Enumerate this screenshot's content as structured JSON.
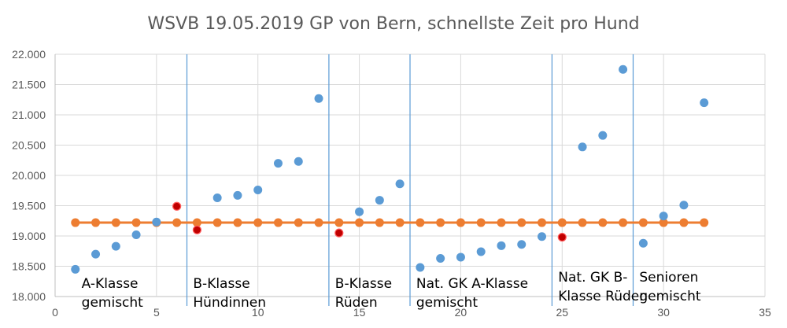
{
  "chart_data": {
    "type": "scatter",
    "title": "WSVB 19.05.2019 GP von Bern, schnellste Zeit pro Hund",
    "xlim": [
      0,
      35
    ],
    "ylim": [
      18000,
      22000
    ],
    "x_ticks": [
      0,
      5,
      10,
      15,
      20,
      25,
      30,
      35
    ],
    "y_ticks": [
      18000,
      18500,
      19000,
      19500,
      20000,
      20500,
      21000,
      21500,
      22000
    ],
    "x_tick_labels": [
      "0",
      "5",
      "10",
      "15",
      "20",
      "25",
      "30",
      "35"
    ],
    "y_tick_labels": [
      "18.000",
      "18.500",
      "19.000",
      "19.500",
      "20.000",
      "20.500",
      "21.000",
      "21.500",
      "22.000"
    ],
    "grid": "horizontal and vertical",
    "legend": "none",
    "series": [
      {
        "color": "#5b9bd5",
        "x": [
          1,
          2,
          3,
          4,
          5,
          6,
          7,
          8,
          9,
          10,
          11,
          12,
          13,
          14,
          15,
          16,
          17,
          18,
          19,
          20,
          21,
          22,
          23,
          24,
          25,
          26,
          27,
          28,
          29,
          30,
          31,
          32
        ],
        "y": [
          18450,
          18700,
          18830,
          19020,
          19230,
          19490,
          19100,
          19630,
          19670,
          19760,
          20200,
          20230,
          21270,
          19050,
          19400,
          19590,
          19860,
          18480,
          18630,
          18650,
          18740,
          18840,
          18860,
          18990,
          18980,
          20470,
          20660,
          21750,
          18880,
          19330,
          19510,
          21200
        ],
        "highlight_color": "#c00000",
        "highlight_x": [
          6,
          7,
          14,
          25
        ]
      },
      {
        "color": "#ed7d31",
        "x": [
          1,
          2,
          3,
          4,
          5,
          6,
          7,
          8,
          9,
          10,
          11,
          12,
          13,
          14,
          15,
          16,
          17,
          18,
          19,
          20,
          21,
          22,
          23,
          24,
          25,
          26,
          27,
          28,
          29,
          30,
          31,
          32
        ],
        "y": [
          19220,
          19220,
          19220,
          19220,
          19220,
          19220,
          19220,
          19220,
          19220,
          19220,
          19220,
          19220,
          19220,
          19220,
          19220,
          19220,
          19220,
          19220,
          19220,
          19220,
          19220,
          19220,
          19220,
          19220,
          19220,
          19220,
          19220,
          19220,
          19220,
          19220,
          19220,
          19220
        ]
      }
    ],
    "separators_x": [
      6.5,
      13.5,
      17.5,
      24.5,
      28.5
    ],
    "separator_color": "#5b9bd5",
    "group_labels": [
      {
        "lines": [
          "A-Klasse",
          "gemischt"
        ]
      },
      {
        "lines": [
          "B-Klasse",
          "Hündinnen"
        ]
      },
      {
        "lines": [
          "B-Klasse",
          "Rüden"
        ]
      },
      {
        "lines": [
          "Nat. GK A-Klasse",
          "gemischt"
        ]
      },
      {
        "lines": [
          "Nat. GK B-",
          "Klasse Rüden"
        ]
      },
      {
        "lines": [
          "Senioren",
          "gemischt"
        ]
      }
    ]
  }
}
